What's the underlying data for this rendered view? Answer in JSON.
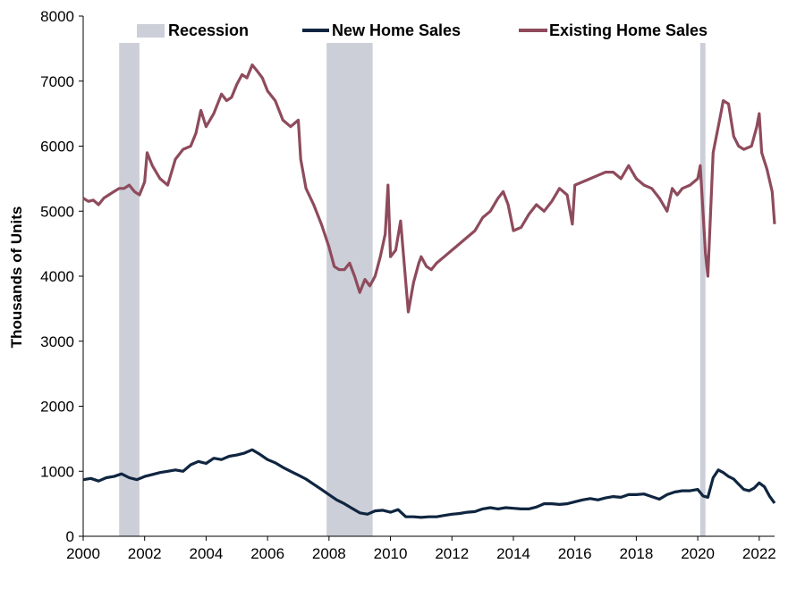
{
  "chart_data": {
    "type": "line",
    "title": "",
    "xlabel": "",
    "ylabel": "Thousands of Units",
    "xlim": [
      2000,
      2022.5
    ],
    "ylim": [
      0,
      8000
    ],
    "x_ticks": [
      2000,
      2002,
      2004,
      2006,
      2008,
      2010,
      2012,
      2014,
      2016,
      2018,
      2020,
      2022
    ],
    "x_tick_labels": [
      "2000",
      "2002",
      "2004",
      "2006",
      "2008",
      "2010",
      "2012",
      "2014",
      "2016",
      "2018",
      "2020",
      "2022"
    ],
    "y_ticks": [
      0,
      1000,
      2000,
      3000,
      4000,
      5000,
      6000,
      7000,
      8000
    ],
    "y_tick_labels": [
      "0",
      "1000",
      "2000",
      "3000",
      "4000",
      "5000",
      "6000",
      "7000",
      "8000"
    ],
    "grid": false,
    "legend_position": "top",
    "recessions": {
      "name": "Recession",
      "color": "#cdcfd8",
      "periods": [
        [
          2001.17,
          2001.83
        ],
        [
          2007.92,
          2009.42
        ],
        [
          2020.08,
          2020.25
        ]
      ]
    },
    "series": [
      {
        "name": "New Home Sales",
        "color": "#0f2540",
        "points": [
          [
            2000.0,
            870
          ],
          [
            2000.25,
            890
          ],
          [
            2000.5,
            850
          ],
          [
            2000.75,
            900
          ],
          [
            2001.0,
            920
          ],
          [
            2001.25,
            960
          ],
          [
            2001.5,
            900
          ],
          [
            2001.75,
            870
          ],
          [
            2002.0,
            920
          ],
          [
            2002.25,
            950
          ],
          [
            2002.5,
            980
          ],
          [
            2002.75,
            1000
          ],
          [
            2003.0,
            1020
          ],
          [
            2003.25,
            1000
          ],
          [
            2003.5,
            1100
          ],
          [
            2003.75,
            1150
          ],
          [
            2004.0,
            1120
          ],
          [
            2004.25,
            1200
          ],
          [
            2004.5,
            1180
          ],
          [
            2004.75,
            1230
          ],
          [
            2005.0,
            1250
          ],
          [
            2005.25,
            1280
          ],
          [
            2005.5,
            1330
          ],
          [
            2005.75,
            1260
          ],
          [
            2006.0,
            1180
          ],
          [
            2006.25,
            1130
          ],
          [
            2006.5,
            1060
          ],
          [
            2006.75,
            1000
          ],
          [
            2007.0,
            940
          ],
          [
            2007.25,
            880
          ],
          [
            2007.5,
            800
          ],
          [
            2007.75,
            720
          ],
          [
            2008.0,
            640
          ],
          [
            2008.25,
            560
          ],
          [
            2008.5,
            500
          ],
          [
            2008.75,
            430
          ],
          [
            2009.0,
            360
          ],
          [
            2009.25,
            340
          ],
          [
            2009.5,
            390
          ],
          [
            2009.75,
            400
          ],
          [
            2010.0,
            370
          ],
          [
            2010.25,
            410
          ],
          [
            2010.5,
            300
          ],
          [
            2010.75,
            300
          ],
          [
            2011.0,
            290
          ],
          [
            2011.25,
            300
          ],
          [
            2011.5,
            300
          ],
          [
            2011.75,
            320
          ],
          [
            2012.0,
            340
          ],
          [
            2012.25,
            350
          ],
          [
            2012.5,
            370
          ],
          [
            2012.75,
            380
          ],
          [
            2013.0,
            420
          ],
          [
            2013.25,
            440
          ],
          [
            2013.5,
            420
          ],
          [
            2013.75,
            440
          ],
          [
            2014.0,
            430
          ],
          [
            2014.25,
            420
          ],
          [
            2014.5,
            420
          ],
          [
            2014.75,
            450
          ],
          [
            2015.0,
            500
          ],
          [
            2015.25,
            500
          ],
          [
            2015.5,
            490
          ],
          [
            2015.75,
            500
          ],
          [
            2016.0,
            530
          ],
          [
            2016.25,
            560
          ],
          [
            2016.5,
            580
          ],
          [
            2016.75,
            560
          ],
          [
            2017.0,
            590
          ],
          [
            2017.25,
            610
          ],
          [
            2017.5,
            600
          ],
          [
            2017.75,
            640
          ],
          [
            2018.0,
            640
          ],
          [
            2018.25,
            650
          ],
          [
            2018.5,
            610
          ],
          [
            2018.75,
            570
          ],
          [
            2019.0,
            640
          ],
          [
            2019.25,
            680
          ],
          [
            2019.5,
            700
          ],
          [
            2019.75,
            700
          ],
          [
            2020.0,
            720
          ],
          [
            2020.17,
            620
          ],
          [
            2020.33,
            600
          ],
          [
            2020.5,
            900
          ],
          [
            2020.67,
            1020
          ],
          [
            2020.83,
            980
          ],
          [
            2021.0,
            920
          ],
          [
            2021.17,
            880
          ],
          [
            2021.33,
            800
          ],
          [
            2021.5,
            720
          ],
          [
            2021.67,
            700
          ],
          [
            2021.83,
            740
          ],
          [
            2022.0,
            820
          ],
          [
            2022.17,
            760
          ],
          [
            2022.33,
            620
          ],
          [
            2022.5,
            510
          ]
        ]
      },
      {
        "name": "Existing Home Sales",
        "color": "#8e4b5c",
        "points": [
          [
            2000.0,
            5200
          ],
          [
            2000.17,
            5150
          ],
          [
            2000.33,
            5170
          ],
          [
            2000.5,
            5100
          ],
          [
            2000.67,
            5200
          ],
          [
            2000.83,
            5250
          ],
          [
            2001.0,
            5300
          ],
          [
            2001.17,
            5350
          ],
          [
            2001.33,
            5350
          ],
          [
            2001.5,
            5400
          ],
          [
            2001.67,
            5300
          ],
          [
            2001.83,
            5250
          ],
          [
            2002.0,
            5450
          ],
          [
            2002.08,
            5900
          ],
          [
            2002.25,
            5700
          ],
          [
            2002.5,
            5500
          ],
          [
            2002.75,
            5400
          ],
          [
            2003.0,
            5800
          ],
          [
            2003.25,
            5950
          ],
          [
            2003.5,
            6000
          ],
          [
            2003.67,
            6200
          ],
          [
            2003.83,
            6550
          ],
          [
            2004.0,
            6300
          ],
          [
            2004.25,
            6500
          ],
          [
            2004.5,
            6800
          ],
          [
            2004.67,
            6700
          ],
          [
            2004.83,
            6750
          ],
          [
            2005.0,
            6950
          ],
          [
            2005.17,
            7100
          ],
          [
            2005.33,
            7050
          ],
          [
            2005.5,
            7250
          ],
          [
            2005.67,
            7150
          ],
          [
            2005.83,
            7050
          ],
          [
            2006.0,
            6850
          ],
          [
            2006.25,
            6700
          ],
          [
            2006.5,
            6400
          ],
          [
            2006.75,
            6300
          ],
          [
            2007.0,
            6400
          ],
          [
            2007.08,
            5800
          ],
          [
            2007.25,
            5350
          ],
          [
            2007.5,
            5100
          ],
          [
            2007.75,
            4800
          ],
          [
            2008.0,
            4450
          ],
          [
            2008.17,
            4150
          ],
          [
            2008.33,
            4100
          ],
          [
            2008.5,
            4100
          ],
          [
            2008.67,
            4200
          ],
          [
            2008.83,
            4000
          ],
          [
            2009.0,
            3750
          ],
          [
            2009.17,
            3950
          ],
          [
            2009.33,
            3850
          ],
          [
            2009.5,
            4000
          ],
          [
            2009.67,
            4300
          ],
          [
            2009.83,
            4650
          ],
          [
            2009.92,
            5400
          ],
          [
            2010.0,
            4300
          ],
          [
            2010.17,
            4400
          ],
          [
            2010.33,
            4850
          ],
          [
            2010.5,
            3900
          ],
          [
            2010.58,
            3450
          ],
          [
            2010.75,
            3900
          ],
          [
            2010.92,
            4200
          ],
          [
            2011.0,
            4300
          ],
          [
            2011.17,
            4150
          ],
          [
            2011.33,
            4100
          ],
          [
            2011.5,
            4200
          ],
          [
            2011.75,
            4300
          ],
          [
            2012.0,
            4400
          ],
          [
            2012.25,
            4500
          ],
          [
            2012.5,
            4600
          ],
          [
            2012.75,
            4700
          ],
          [
            2013.0,
            4900
          ],
          [
            2013.25,
            5000
          ],
          [
            2013.5,
            5200
          ],
          [
            2013.67,
            5300
          ],
          [
            2013.83,
            5100
          ],
          [
            2014.0,
            4700
          ],
          [
            2014.25,
            4750
          ],
          [
            2014.5,
            4950
          ],
          [
            2014.75,
            5100
          ],
          [
            2015.0,
            5000
          ],
          [
            2015.25,
            5150
          ],
          [
            2015.5,
            5350
          ],
          [
            2015.75,
            5250
          ],
          [
            2015.92,
            4800
          ],
          [
            2016.0,
            5400
          ],
          [
            2016.25,
            5450
          ],
          [
            2016.5,
            5500
          ],
          [
            2016.75,
            5550
          ],
          [
            2017.0,
            5600
          ],
          [
            2017.25,
            5600
          ],
          [
            2017.5,
            5500
          ],
          [
            2017.75,
            5700
          ],
          [
            2018.0,
            5500
          ],
          [
            2018.25,
            5400
          ],
          [
            2018.5,
            5350
          ],
          [
            2018.75,
            5200
          ],
          [
            2019.0,
            5000
          ],
          [
            2019.17,
            5350
          ],
          [
            2019.33,
            5250
          ],
          [
            2019.5,
            5350
          ],
          [
            2019.75,
            5400
          ],
          [
            2020.0,
            5500
          ],
          [
            2020.08,
            5700
          ],
          [
            2020.25,
            4350
          ],
          [
            2020.33,
            4000
          ],
          [
            2020.5,
            5900
          ],
          [
            2020.75,
            6500
          ],
          [
            2020.83,
            6700
          ],
          [
            2021.0,
            6650
          ],
          [
            2021.17,
            6150
          ],
          [
            2021.33,
            6000
          ],
          [
            2021.5,
            5950
          ],
          [
            2021.75,
            6000
          ],
          [
            2021.92,
            6300
          ],
          [
            2022.0,
            6500
          ],
          [
            2022.08,
            5900
          ],
          [
            2022.25,
            5650
          ],
          [
            2022.42,
            5300
          ],
          [
            2022.5,
            4800
          ]
        ]
      }
    ]
  }
}
